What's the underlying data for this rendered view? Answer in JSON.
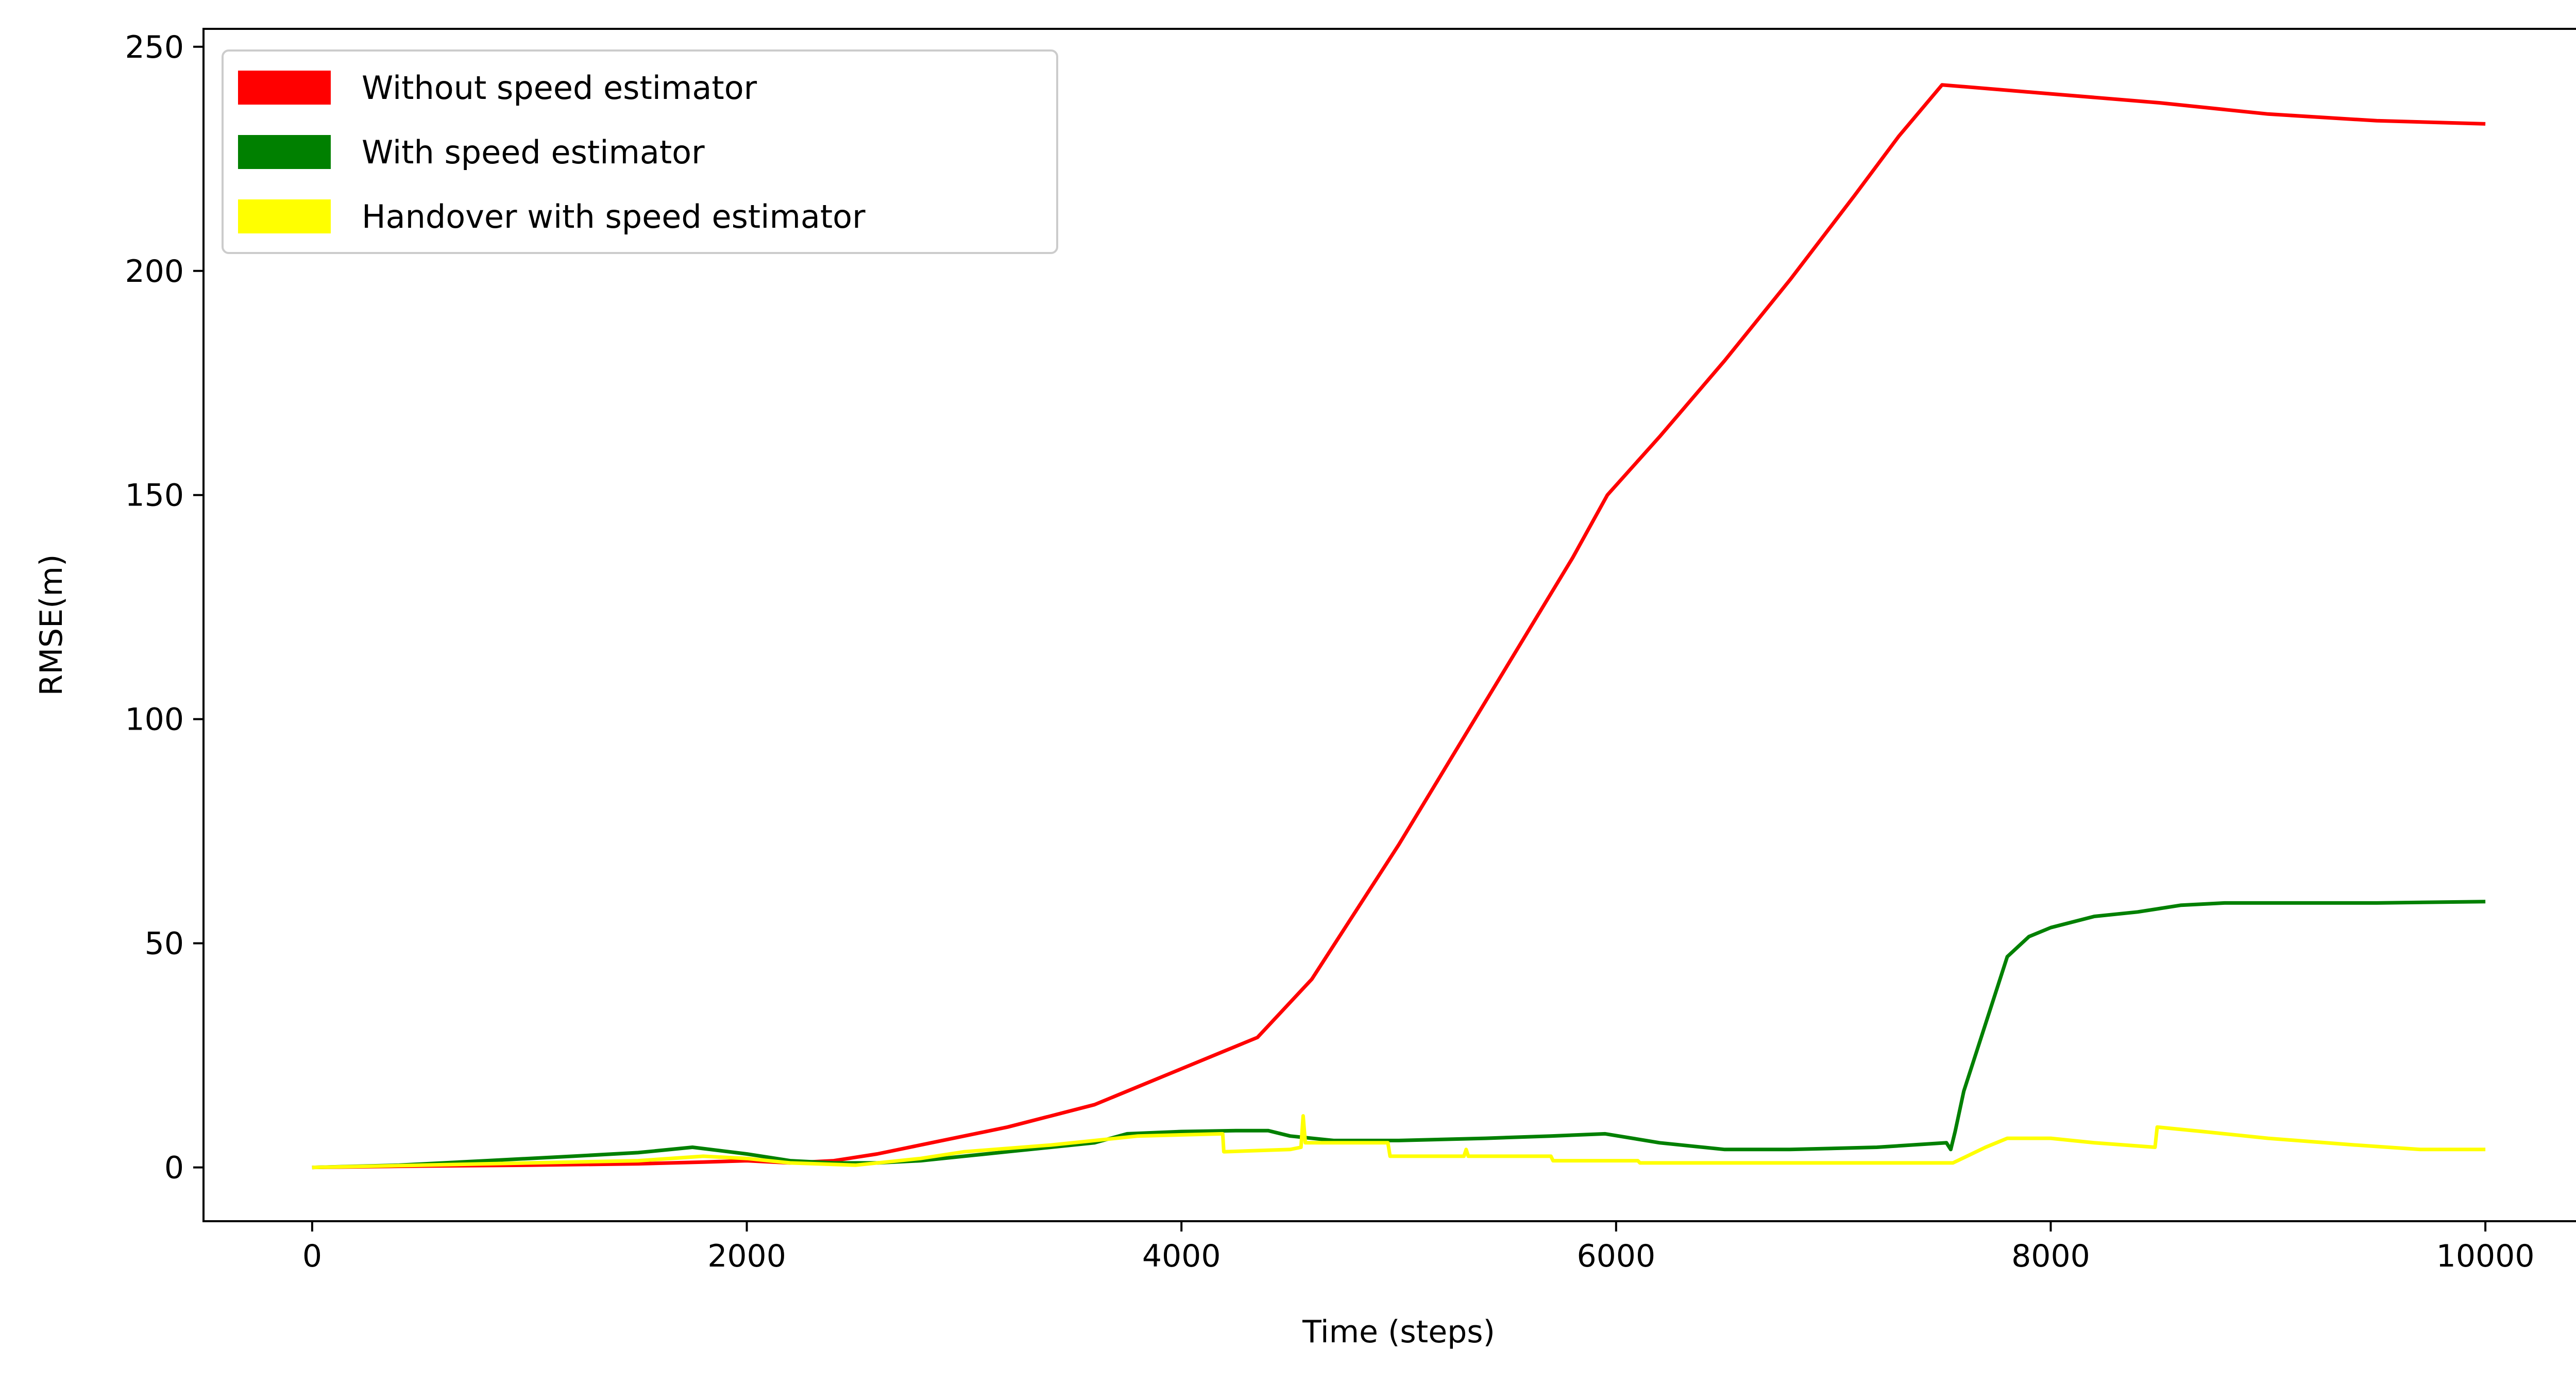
{
  "chart_data": {
    "type": "line",
    "title": "",
    "xlabel": "Time (steps)",
    "ylabel": "RMSE(m)",
    "xlim": [
      -500,
      10500
    ],
    "ylim": [
      -12,
      254
    ],
    "xticks": [
      0,
      2000,
      4000,
      6000,
      8000,
      10000
    ],
    "yticks": [
      0,
      50,
      100,
      150,
      200,
      250
    ],
    "grid": false,
    "legend_position": "top-left",
    "series": [
      {
        "name": "Without speed estimator",
        "color": "#ff0000",
        "points": [
          [
            0,
            0
          ],
          [
            500,
            0.3
          ],
          [
            1000,
            0.5
          ],
          [
            1500,
            0.8
          ],
          [
            1800,
            1.2
          ],
          [
            2000,
            1.5
          ],
          [
            2200,
            1
          ],
          [
            2400,
            1.5
          ],
          [
            2600,
            3
          ],
          [
            2800,
            5
          ],
          [
            3000,
            7
          ],
          [
            3200,
            9
          ],
          [
            3400,
            11.5
          ],
          [
            3600,
            14
          ],
          [
            3800,
            18
          ],
          [
            4000,
            22
          ],
          [
            4200,
            26
          ],
          [
            4350,
            29
          ],
          [
            4600,
            42
          ],
          [
            4800,
            57
          ],
          [
            5000,
            72
          ],
          [
            5200,
            88
          ],
          [
            5400,
            104
          ],
          [
            5600,
            120
          ],
          [
            5800,
            136
          ],
          [
            5960,
            150
          ],
          [
            6200,
            163
          ],
          [
            6500,
            180
          ],
          [
            6800,
            198
          ],
          [
            7100,
            217
          ],
          [
            7300,
            230
          ],
          [
            7500,
            241.5
          ],
          [
            8000,
            239.5
          ],
          [
            8500,
            237.5
          ],
          [
            9000,
            235
          ],
          [
            9500,
            233.5
          ],
          [
            10000,
            232.8
          ]
        ]
      },
      {
        "name": "With speed estimator",
        "color": "#008000",
        "points": [
          [
            0,
            0
          ],
          [
            400,
            0.5
          ],
          [
            800,
            1.5
          ],
          [
            1200,
            2.5
          ],
          [
            1500,
            3.3
          ],
          [
            1750,
            4.5
          ],
          [
            2000,
            3
          ],
          [
            2200,
            1.5
          ],
          [
            2400,
            1
          ],
          [
            2600,
            1
          ],
          [
            2800,
            1.5
          ],
          [
            3000,
            2.5
          ],
          [
            3200,
            3.5
          ],
          [
            3400,
            4.5
          ],
          [
            3600,
            5.5
          ],
          [
            3750,
            7.5
          ],
          [
            4000,
            8
          ],
          [
            4250,
            8.2
          ],
          [
            4400,
            8.2
          ],
          [
            4500,
            7
          ],
          [
            4700,
            6
          ],
          [
            5000,
            6
          ],
          [
            5400,
            6.5
          ],
          [
            5700,
            7
          ],
          [
            5950,
            7.5
          ],
          [
            6200,
            5.5
          ],
          [
            6500,
            4
          ],
          [
            6800,
            4
          ],
          [
            7200,
            4.5
          ],
          [
            7520,
            5.5
          ],
          [
            7540,
            4
          ],
          [
            7560,
            8
          ],
          [
            7600,
            17
          ],
          [
            7700,
            32
          ],
          [
            7800,
            47
          ],
          [
            7900,
            51.5
          ],
          [
            8000,
            53.5
          ],
          [
            8200,
            56
          ],
          [
            8400,
            57
          ],
          [
            8600,
            58.5
          ],
          [
            8800,
            59
          ],
          [
            9000,
            59
          ],
          [
            9200,
            59
          ],
          [
            9500,
            59
          ],
          [
            10000,
            59.3
          ]
        ]
      },
      {
        "name": "Handover with speed estimator",
        "color": "#ffff00",
        "points": [
          [
            0,
            0
          ],
          [
            500,
            0.5
          ],
          [
            1000,
            1
          ],
          [
            1500,
            1.5
          ],
          [
            1800,
            2.5
          ],
          [
            2000,
            2
          ],
          [
            2200,
            1
          ],
          [
            2500,
            0.5
          ],
          [
            2800,
            2
          ],
          [
            3000,
            3.5
          ],
          [
            3400,
            5
          ],
          [
            3800,
            7
          ],
          [
            4190,
            7.5
          ],
          [
            4195,
            3.5
          ],
          [
            4500,
            4
          ],
          [
            4550,
            4.5
          ],
          [
            4560,
            11.5
          ],
          [
            4570,
            5.5
          ],
          [
            4950,
            5.5
          ],
          [
            4960,
            2.5
          ],
          [
            5300,
            2.5
          ],
          [
            5310,
            4
          ],
          [
            5320,
            2.5
          ],
          [
            5700,
            2.5
          ],
          [
            5710,
            1.5
          ],
          [
            6100,
            1.5
          ],
          [
            6110,
            1
          ],
          [
            7550,
            1
          ],
          [
            7700,
            4.5
          ],
          [
            7800,
            6.5
          ],
          [
            8000,
            6.5
          ],
          [
            8200,
            5.5
          ],
          [
            8480,
            4.5
          ],
          [
            8490,
            9
          ],
          [
            8700,
            8
          ],
          [
            9000,
            6.5
          ],
          [
            9400,
            5
          ],
          [
            9700,
            4
          ],
          [
            10000,
            4
          ]
        ]
      }
    ]
  }
}
